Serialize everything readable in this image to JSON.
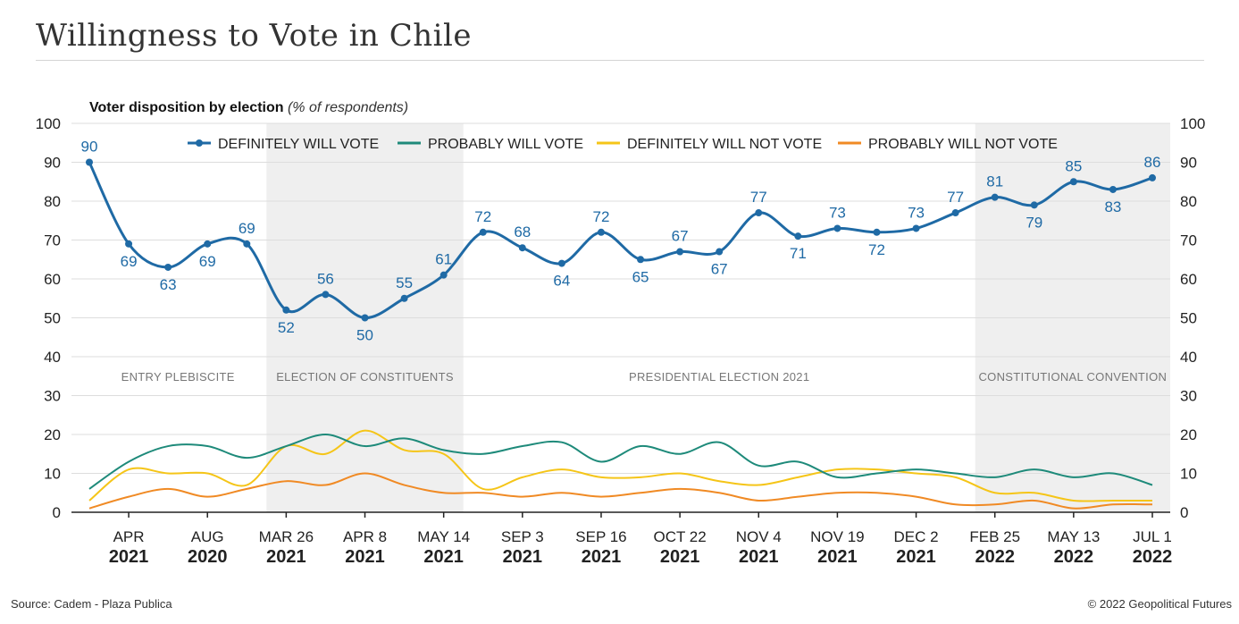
{
  "title": "Willingness to Vote in Chile",
  "source": "Source: Cadem - Plaza Publica",
  "copyright": "© 2022 Geopolitical Futures",
  "chart_data": {
    "type": "line",
    "subtitle_bold": "Voter disposition by election",
    "subtitle_italic": "(% of respondents)",
    "ylim": [
      0,
      100
    ],
    "yticks": [
      0,
      10,
      20,
      30,
      40,
      50,
      60,
      70,
      80,
      90,
      100
    ],
    "x_tick_labels": [
      {
        "top": "APR",
        "bottom": "2021"
      },
      {
        "top": "AUG",
        "bottom": "2020"
      },
      {
        "top": "MAR 26",
        "bottom": "2021"
      },
      {
        "top": "APR 8",
        "bottom": "2021"
      },
      {
        "top": "MAY 14",
        "bottom": "2021"
      },
      {
        "top": "SEP 3",
        "bottom": "2021"
      },
      {
        "top": "SEP 16",
        "bottom": "2021"
      },
      {
        "top": "OCT 22",
        "bottom": "2021"
      },
      {
        "top": "NOV 4",
        "bottom": "2021"
      },
      {
        "top": "NOV 19",
        "bottom": "2021"
      },
      {
        "top": "DEC 2",
        "bottom": "2021"
      },
      {
        "top": "FEB 25",
        "bottom": "2022"
      },
      {
        "top": "MAY 13",
        "bottom": "2022"
      },
      {
        "top": "JUL 1",
        "bottom": "2022"
      }
    ],
    "periods": [
      {
        "label": "ENTRY PLEBISCITE",
        "start": 0,
        "end": 4.5,
        "shaded": false
      },
      {
        "label": "ELECTION OF CONSTITUENTS",
        "start": 4.5,
        "end": 9.5,
        "shaded": true
      },
      {
        "label": "PRESIDENTIAL ELECTION 2021",
        "start": 9.5,
        "end": 22.5,
        "shaded": false
      },
      {
        "label": "CONSTITUTIONAL CONVENTION",
        "start": 22.5,
        "end": 27.5,
        "shaded": true
      }
    ],
    "legend": {
      "placement": "top"
    },
    "series": [
      {
        "name": "DEFINITELY WILL VOTE",
        "color": "#1f6aa5",
        "markers": true,
        "values": [
          90,
          69,
          63,
          69,
          69,
          52,
          56,
          50,
          55,
          61,
          72,
          68,
          64,
          72,
          65,
          67,
          67,
          77,
          71,
          73,
          72,
          73,
          77,
          81,
          79,
          85,
          83,
          86
        ]
      },
      {
        "name": "PROBABLY WILL VOTE",
        "color": "#1e8a7a",
        "markers": false,
        "values": [
          6,
          13,
          17,
          17,
          14,
          17,
          20,
          17,
          19,
          16,
          15,
          17,
          18,
          13,
          17,
          15,
          18,
          12,
          13,
          9,
          10,
          11,
          10,
          9,
          11,
          9,
          10,
          7
        ]
      },
      {
        "name": "DEFINITELY WILL NOT VOTE",
        "color": "#f5c518",
        "markers": false,
        "values": [
          3,
          11,
          10,
          10,
          7,
          17,
          15,
          21,
          16,
          15,
          6,
          9,
          11,
          9,
          9,
          10,
          8,
          7,
          9,
          11,
          11,
          10,
          9,
          5,
          5,
          3,
          3,
          3
        ]
      },
      {
        "name": "PROBABLY WILL NOT VOTE",
        "color": "#f08a24",
        "markers": false,
        "values": [
          1,
          4,
          6,
          4,
          6,
          8,
          7,
          10,
          7,
          5,
          5,
          4,
          5,
          4,
          5,
          6,
          5,
          3,
          4,
          5,
          5,
          4,
          2,
          2,
          3,
          1,
          2,
          2
        ]
      }
    ]
  }
}
